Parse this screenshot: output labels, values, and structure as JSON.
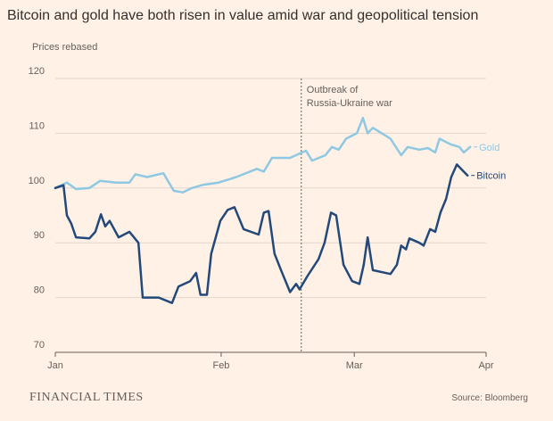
{
  "chart_data": {
    "type": "line",
    "title": "Bitcoin and gold have both risen in value amid war and geopolitical tension",
    "subtitle": "Prices rebased",
    "source": "Source: Bloomberg",
    "brand": "FINANCIAL TIMES",
    "xlim": [
      0,
      100
    ],
    "xticks": [
      {
        "value": 0,
        "label": "Jan"
      },
      {
        "value": 38.5,
        "label": "Feb"
      },
      {
        "value": 69.4,
        "label": "Mar"
      },
      {
        "value": 100,
        "label": "Apr"
      }
    ],
    "ylim": [
      70,
      120
    ],
    "yticks": [
      70,
      80,
      90,
      100,
      110,
      120
    ],
    "grid": true,
    "annotation": {
      "x": 57.1,
      "lines": [
        "Outbreak of",
        "Russia-Ukraine war"
      ]
    },
    "series": [
      {
        "name": "Gold",
        "color": "#8fc8e3",
        "x": [
          0,
          2.7,
          4.8,
          7.9,
          10.4,
          14.1,
          17.2,
          18.6,
          21.3,
          25.1,
          27.5,
          29.6,
          31.7,
          34.4,
          37.9,
          42,
          46.8,
          48.4,
          50.3,
          54.5,
          58.2,
          59.6,
          62.7,
          64.2,
          65.8,
          67.5,
          70,
          71.4,
          72.5,
          73.7,
          75.8,
          77.8,
          80.3,
          81.8,
          84.5,
          86.5,
          88.2,
          89.2,
          91.7,
          93.8,
          94.8,
          96.3
        ],
        "values": [
          100,
          101,
          99.8,
          100,
          101.3,
          101,
          101,
          102.5,
          102,
          102.7,
          99.5,
          99.2,
          100,
          100.6,
          101,
          102,
          103.5,
          103,
          105.5,
          105.5,
          106.8,
          105,
          106,
          107.5,
          107,
          109,
          110,
          112.8,
          110,
          111,
          110,
          109,
          106,
          107.5,
          107,
          107.3,
          106.5,
          109,
          108,
          107.5,
          106.5,
          107.5
        ]
      },
      {
        "name": "Bitcoin",
        "color": "#23497a",
        "x": [
          0,
          1.9,
          2.7,
          3.7,
          4.8,
          7.9,
          9.3,
          10.6,
          11.6,
          12.6,
          14.7,
          17.2,
          19.3,
          20.3,
          24,
          27.1,
          28.6,
          31.3,
          32.7,
          33.7,
          35.2,
          36.2,
          38.3,
          40,
          41.6,
          43.7,
          47.2,
          48.4,
          49.5,
          50.9,
          52.4,
          54.5,
          55.9,
          56.7,
          58.6,
          61.1,
          62.5,
          64,
          65.2,
          66.9,
          68.9,
          70.6,
          71.6,
          72.5,
          73.7,
          77.8,
          79.3,
          80.3,
          81.4,
          82.2,
          84.5,
          85.5,
          87,
          88.2,
          89.4,
          90.7,
          91.9,
          93.2,
          94.8,
          95.7
        ],
        "values": [
          100,
          100.5,
          95,
          93.5,
          91,
          90.8,
          92,
          95.2,
          93,
          94,
          91,
          92,
          90,
          80,
          80,
          79,
          82,
          83,
          84.5,
          80.5,
          80.5,
          88,
          94,
          96,
          96.5,
          92.5,
          91.5,
          95.5,
          95.8,
          88,
          85,
          81,
          82.5,
          81.5,
          84,
          87,
          90,
          95.5,
          95,
          86,
          83,
          82.5,
          86,
          91,
          85,
          84.3,
          86,
          89.5,
          88.8,
          90.8,
          90,
          89.5,
          92.5,
          92,
          95.5,
          98,
          102,
          104.3,
          103,
          102.3
        ]
      }
    ]
  }
}
